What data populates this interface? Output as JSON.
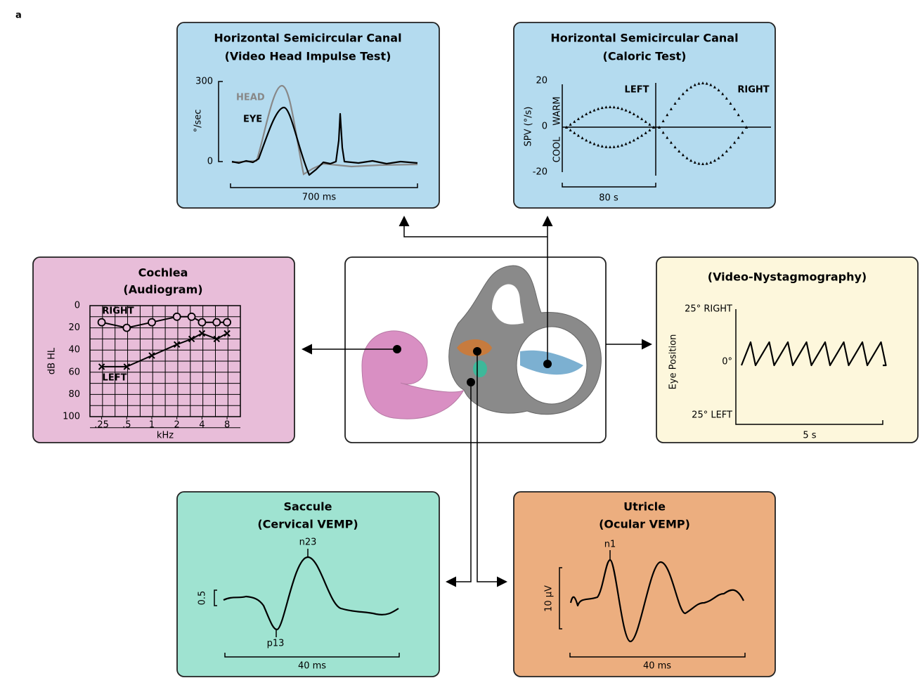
{
  "label": "a",
  "vhit": {
    "title": [
      "Horizontal Semicircular Canal",
      "(Video Head Impulse Test)"
    ],
    "yticks": [
      "300",
      "0"
    ],
    "ylabel": "°/sec",
    "legend": [
      "HEAD",
      "EYE"
    ],
    "scale": "700 ms"
  },
  "caloric": {
    "title": [
      "Horizontal Semicircular Canal",
      "(Caloric Test)"
    ],
    "yticks": [
      "20",
      "0",
      "-20"
    ],
    "ylabel": "SPV (°/s)",
    "warm": "WARM",
    "cool": "COOL",
    "left": "LEFT",
    "right": "RIGHT",
    "scale": "80 s"
  },
  "audiogram": {
    "title": [
      "Cochlea",
      "(Audiogram)"
    ],
    "ylabel": "dB HL",
    "xlabel": "kHz",
    "ylim": [
      0,
      100
    ],
    "yticks": [
      0,
      20,
      40,
      60,
      80,
      100
    ],
    "xticks": [
      {
        "value": 0.25,
        "label": ".25"
      },
      {
        "value": 0.5,
        "label": ".5"
      },
      1,
      2,
      4,
      8
    ],
    "series": [
      {
        "name": "RIGHT",
        "x": [
          0.25,
          0.5,
          1,
          2,
          3,
          4,
          6,
          8
        ],
        "values": [
          15,
          20,
          15,
          10,
          10,
          15,
          15,
          15
        ]
      },
      {
        "name": "LEFT",
        "x": [
          0.25,
          0.5,
          1,
          2,
          3,
          4,
          6,
          8
        ],
        "values": [
          55,
          55,
          45,
          35,
          30,
          25,
          30,
          25
        ]
      }
    ]
  },
  "vng": {
    "title": [
      "(Video-Nystagmography)"
    ],
    "ylabel": "Eye Position",
    "yticks": [
      "25° RIGHT",
      "0°",
      "25° LEFT"
    ],
    "scale": "5 s"
  },
  "saccule": {
    "title": [
      "Saccule",
      "(Cervical VEMP)"
    ],
    "peaks": [
      "n23",
      "p13"
    ],
    "scale_y": "0.5",
    "scale": "40 ms"
  },
  "utricle": {
    "title": [
      "Utricle",
      "(Ocular VEMP)"
    ],
    "peaks": [
      "n1"
    ],
    "scale_y": "10 µV",
    "scale": "40 ms"
  }
}
